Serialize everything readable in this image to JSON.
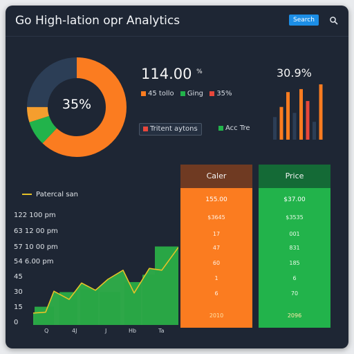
{
  "header": {
    "title": "Go High-lation opr Analytics",
    "search_button": "Search",
    "search_icon": "search-icon"
  },
  "donut": {
    "center_label": "35%",
    "segments": [
      {
        "value": 62,
        "color": "#fb7c20"
      },
      {
        "value": 8,
        "color": "#22b34b"
      },
      {
        "value": 5,
        "color": "#f59e2e"
      },
      {
        "value": 25,
        "color": "#2c3e56"
      }
    ]
  },
  "kpi": {
    "value": "114.00",
    "suffix": "%",
    "legend": [
      {
        "label": "45 tollo",
        "color": "#fb7c20"
      },
      {
        "label": "Ging",
        "color": "#22b34b"
      },
      {
        "label": "35%",
        "color": "#e8473b"
      }
    ]
  },
  "chips": {
    "left": {
      "label": "Tritent aytons",
      "color": "#e8473b"
    },
    "right": {
      "label": "Acc Tre",
      "color": "#22b34b"
    }
  },
  "mini_chart": {
    "label": "30.9%",
    "bars": [
      {
        "value": 0.38,
        "color": "#2c3e56"
      },
      {
        "value": 0.55,
        "color": "#fb7c20"
      },
      {
        "value": 0.8,
        "color": "#fb7c20"
      },
      {
        "value": 0.45,
        "color": "#2c3e56"
      },
      {
        "value": 0.85,
        "color": "#fb7c20"
      },
      {
        "value": 0.65,
        "color": "#e8473b"
      },
      {
        "value": 0.3,
        "color": "#2c3e56"
      },
      {
        "value": 0.93,
        "color": "#fb7c20"
      }
    ]
  },
  "line_chart": {
    "legend": "Patercal san",
    "y_labels": [
      "122 100 pm",
      "63 12 00 pm",
      "57 10 00 pm",
      "54  6.00 pm",
      "45",
      "30",
      "15",
      "0"
    ],
    "x_labels": [
      "Q",
      "4J",
      "J",
      "Hb",
      "Ta"
    ],
    "line_color": "#e6c228",
    "fill_color": "#2fae4a",
    "line_values": [
      0.13,
      0.14,
      0.37,
      0.28,
      0.46,
      0.38,
      0.5,
      0.6,
      0.35,
      0.62,
      0.6,
      0.85
    ],
    "bars": [
      {
        "value": 0.2
      },
      {
        "value": 0.36
      },
      {
        "value": 0.39
      },
      {
        "value": 0.36
      },
      {
        "value": 0.47
      },
      {
        "value": 0.55
      },
      {
        "value": 0.86
      }
    ]
  },
  "columns": {
    "left": {
      "header": "Caler",
      "rows": [
        "155.00",
        "$3645",
        "17",
        "47",
        "60",
        "1",
        "6"
      ],
      "total": "2010"
    },
    "right": {
      "header": "Price",
      "rows": [
        "$37.00",
        "$3535",
        "001",
        "831",
        "185",
        "6",
        "70"
      ],
      "total": "2096"
    }
  },
  "colors": {
    "background": "#1e2634",
    "accent_orange": "#fb7c20",
    "accent_green": "#22b34b",
    "accent_blue": "#1c8ee6"
  }
}
